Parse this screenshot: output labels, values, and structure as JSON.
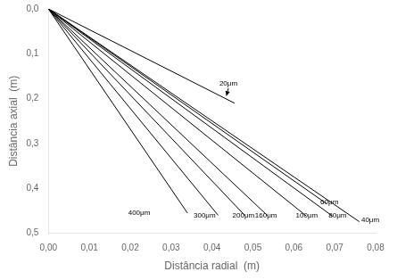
{
  "chart_data": {
    "type": "line",
    "xlabel": "Distância radial  (m)",
    "ylabel": "Distância axial  (m)",
    "series": [
      {
        "color": "#000000",
        "x": [
          0.0,
          0.0455
        ],
        "values": [
          0.0,
          0.21
        ]
      },
      {
        "color": "#000000",
        "x": [
          0.0,
          0.076
        ],
        "values": [
          0.0,
          0.474
        ]
      },
      {
        "color": "#000000",
        "x": [
          0.0,
          0.068
        ],
        "values": [
          0.0,
          0.434
        ]
      },
      {
        "color": "#000000",
        "x": [
          0.0,
          0.0695
        ],
        "values": [
          0.0,
          0.462
        ]
      },
      {
        "color": "#000000",
        "x": [
          0.0,
          0.063
        ],
        "values": [
          0.0,
          0.461
        ]
      },
      {
        "color": "#000000",
        "x": [
          0.0,
          0.0535
        ],
        "values": [
          0.0,
          0.46
        ]
      },
      {
        "color": "#000000",
        "x": [
          0.0,
          0.048
        ],
        "values": [
          0.0,
          0.46
        ]
      },
      {
        "color": "#000000",
        "x": [
          0.0,
          0.0415
        ],
        "values": [
          0.0,
          0.46
        ]
      },
      {
        "color": "#000000",
        "x": [
          0.0,
          0.034
        ],
        "values": [
          0.0,
          0.455
        ]
      }
    ],
    "annotations": [
      {
        "text": "20μm",
        "x": 0.044,
        "y": 0.175,
        "arrow_xy": [
          0.0435,
          0.195
        ]
      },
      {
        "text": "40μm",
        "x": 0.0765,
        "y": 0.463
      },
      {
        "text": "60μm",
        "x": 0.0665,
        "y": 0.423
      },
      {
        "text": "80μm",
        "x": 0.0685,
        "y": 0.452
      },
      {
        "text": "100μm",
        "x": 0.0605,
        "y": 0.453
      },
      {
        "text": "160μm",
        "x": 0.0505,
        "y": 0.453
      },
      {
        "text": "200μm",
        "x": 0.045,
        "y": 0.453
      },
      {
        "text": "300μm",
        "x": 0.0355,
        "y": 0.453
      },
      {
        "text": "400μm",
        "x": 0.0195,
        "y": 0.446
      }
    ],
    "xlim": [
      0.0,
      0.08
    ],
    "ylim": [
      0.5,
      0.0
    ],
    "xticks": [
      {
        "value": 0.0,
        "label": "0,00"
      },
      {
        "value": 0.01,
        "label": "0,01"
      },
      {
        "value": 0.02,
        "label": "0,02"
      },
      {
        "value": 0.03,
        "label": "0,03"
      },
      {
        "value": 0.04,
        "label": "0,04"
      },
      {
        "value": 0.05,
        "label": "0,05"
      },
      {
        "value": 0.06,
        "label": "0,06"
      },
      {
        "value": 0.07,
        "label": "0,07"
      },
      {
        "value": 0.08,
        "label": "0,08"
      }
    ],
    "yticks": [
      {
        "value": 0.0,
        "label": "0,0"
      },
      {
        "value": 0.1,
        "label": "0,1"
      },
      {
        "value": 0.2,
        "label": "0,2"
      },
      {
        "value": 0.3,
        "label": "0,3"
      },
      {
        "value": 0.4,
        "label": "0,4"
      },
      {
        "value": 0.5,
        "label": "0,5"
      }
    ],
    "grid": false
  }
}
